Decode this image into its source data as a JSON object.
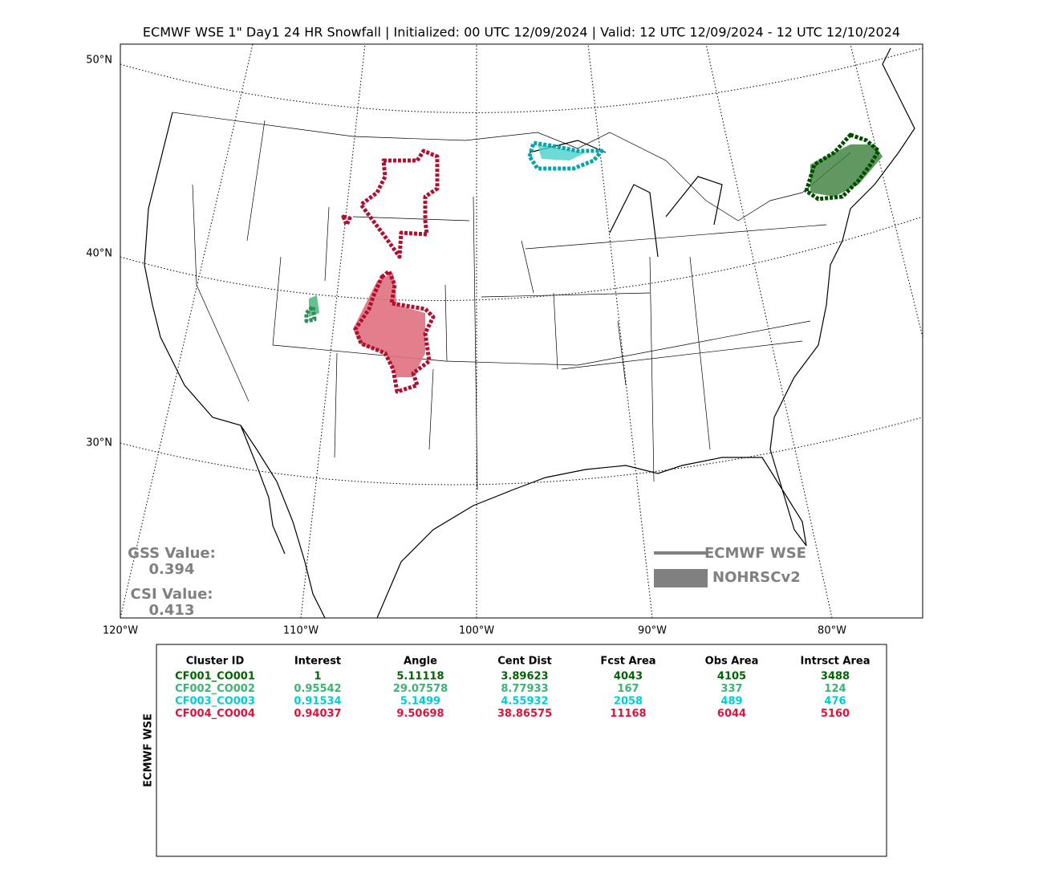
{
  "title": "ECMWF WSE 1\" Day1 24 HR Snowfall | Initialized: 00 UTC 12/09/2024 | Valid: 12 UTC 12/09/2024 - 12 UTC 12/10/2024",
  "map": {
    "lat_labels": [
      "50°N",
      "40°N",
      "30°N"
    ],
    "lon_labels": [
      "120°W",
      "110°W",
      "100°W",
      "90°W",
      "80°W"
    ]
  },
  "scores": {
    "gss_label": "GSS Value:",
    "gss": "0.394",
    "csi_label": "CSI Value:",
    "csi": "0.413"
  },
  "legend": {
    "items": [
      "ECMWF WSE",
      "NOHRSCv2"
    ],
    "color": "#808080"
  },
  "table": {
    "side_label": "ECMWF WSE",
    "columns": [
      "Cluster ID",
      "Interest",
      "Angle",
      "Cent Dist",
      "Fcst Area",
      "Obs Area",
      "Intrsct Area"
    ],
    "rows": [
      {
        "color": "#006400",
        "cells": [
          "CF001_CO001",
          1,
          5.11118,
          3.89623,
          4043,
          4105,
          3488
        ]
      },
      {
        "color": "#3cb371",
        "cells": [
          "CF002_CO002",
          0.95542,
          29.07578,
          8.77933,
          167,
          337,
          124
        ]
      },
      {
        "color": "#00ced1",
        "cells": [
          "CF003_CO003",
          0.91534,
          5.1499,
          4.55932,
          2058,
          489,
          476
        ]
      },
      {
        "color": "#dc143c",
        "cells": [
          "CF004_CO004",
          0.94037,
          9.50698,
          38.86575,
          11168,
          6044,
          5160
        ]
      }
    ]
  }
}
